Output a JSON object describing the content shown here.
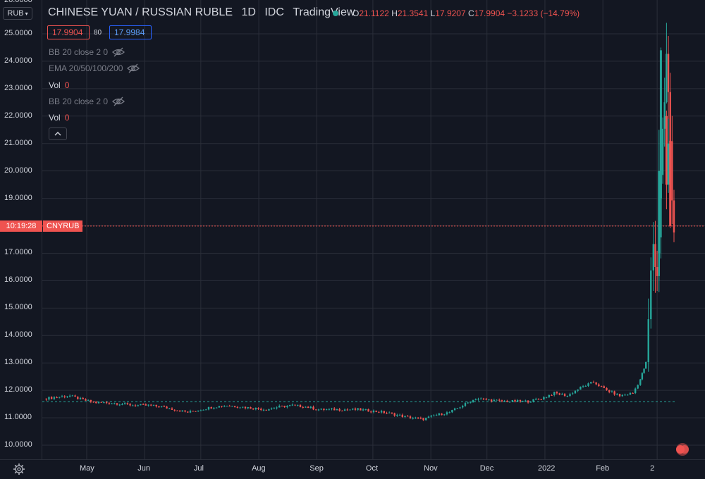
{
  "header": {
    "currency_select": "RUB",
    "title": "CHINESE YUAN / RUSSIAN RUBLE",
    "interval": "1D",
    "exchange": "IDC",
    "source": "TradingView",
    "ohlc": {
      "o_label": "O",
      "o_value": "21.1122",
      "h_label": "H",
      "h_value": "21.3541",
      "l_label": "L",
      "l_value": "17.9207",
      "c_label": "C",
      "c_value": "17.9904",
      "change": "−3.1233 (−14.79%)"
    },
    "sell_price": "17.9904",
    "spread": "80",
    "buy_price": "17.9984"
  },
  "indicators": [
    {
      "label": "BB 20 close 2 0",
      "icon": "eye-hidden-icon"
    },
    {
      "label": "EMA 20/50/100/200",
      "icon": "eye-hidden-icon"
    },
    {
      "label": "Vol",
      "value": "0"
    },
    {
      "label": "BB 20 close 2 0",
      "icon": "eye-hidden-icon"
    },
    {
      "label": "Vol",
      "value": "0"
    }
  ],
  "collapse_icon": "chevron-up-icon",
  "price_axis": {
    "top_partial": "26.0000",
    "labels": [
      "25.0000",
      "24.0000",
      "23.0000",
      "22.0000",
      "21.0000",
      "20.0000",
      "19.0000",
      "17.0000",
      "16.0000",
      "15.0000",
      "14.0000",
      "13.0000",
      "12.0000",
      "11.0000",
      "10.0000"
    ]
  },
  "time_axis": {
    "labels": [
      "May",
      "Jun",
      "Jul",
      "Aug",
      "Sep",
      "Oct",
      "Nov",
      "Dec",
      "2022",
      "Feb",
      "2"
    ]
  },
  "crosshair": {
    "time": "10:19:28",
    "symbol": "CNYRUB"
  },
  "colors": {
    "up": "#26a69a",
    "down": "#ef5350",
    "background": "#131722",
    "grid": "#2a2e39"
  },
  "chart_data": {
    "type": "candlestick",
    "y_range": [
      9.6,
      26.0
    ],
    "x_range": [
      "2021-04-08",
      "2022-03-11"
    ],
    "baseline": 11.58,
    "last": 17.9904,
    "series": [
      {
        "date": "2021-04-08",
        "close": 11.7
      },
      {
        "date": "2021-04-15",
        "close": 11.75
      },
      {
        "date": "2021-04-22",
        "close": 11.8
      },
      {
        "date": "2021-04-29",
        "close": 11.65
      },
      {
        "date": "2021-05-06",
        "close": 11.55
      },
      {
        "date": "2021-05-13",
        "close": 11.55
      },
      {
        "date": "2021-05-20",
        "close": 11.5
      },
      {
        "date": "2021-05-27",
        "close": 11.45
      },
      {
        "date": "2021-06-03",
        "close": 11.45
      },
      {
        "date": "2021-06-10",
        "close": 11.4
      },
      {
        "date": "2021-06-17",
        "close": 11.3
      },
      {
        "date": "2021-06-24",
        "close": 11.2
      },
      {
        "date": "2021-07-01",
        "close": 11.3
      },
      {
        "date": "2021-07-08",
        "close": 11.4
      },
      {
        "date": "2021-07-15",
        "close": 11.45
      },
      {
        "date": "2021-07-22",
        "close": 11.4
      },
      {
        "date": "2021-07-29",
        "close": 11.35
      },
      {
        "date": "2021-08-05",
        "close": 11.3
      },
      {
        "date": "2021-08-12",
        "close": 11.4
      },
      {
        "date": "2021-08-19",
        "close": 11.45
      },
      {
        "date": "2021-08-26",
        "close": 11.4
      },
      {
        "date": "2021-09-02",
        "close": 11.3
      },
      {
        "date": "2021-09-09",
        "close": 11.3
      },
      {
        "date": "2021-09-16",
        "close": 11.3
      },
      {
        "date": "2021-09-23",
        "close": 11.3
      },
      {
        "date": "2021-09-30",
        "close": 11.25
      },
      {
        "date": "2021-10-07",
        "close": 11.2
      },
      {
        "date": "2021-10-14",
        "close": 11.1
      },
      {
        "date": "2021-10-21",
        "close": 11.0
      },
      {
        "date": "2021-10-28",
        "close": 10.95
      },
      {
        "date": "2021-11-04",
        "close": 11.1
      },
      {
        "date": "2021-11-11",
        "close": 11.2
      },
      {
        "date": "2021-11-18",
        "close": 11.45
      },
      {
        "date": "2021-11-25",
        "close": 11.7
      },
      {
        "date": "2021-12-02",
        "close": 11.65
      },
      {
        "date": "2021-12-09",
        "close": 11.6
      },
      {
        "date": "2021-12-16",
        "close": 11.6
      },
      {
        "date": "2021-12-23",
        "close": 11.6
      },
      {
        "date": "2021-12-30",
        "close": 11.7
      },
      {
        "date": "2022-01-06",
        "close": 11.9
      },
      {
        "date": "2022-01-13",
        "close": 11.8
      },
      {
        "date": "2022-01-20",
        "close": 12.1
      },
      {
        "date": "2022-01-27",
        "close": 12.3
      },
      {
        "date": "2022-02-03",
        "close": 12.0
      },
      {
        "date": "2022-02-10",
        "close": 11.8
      },
      {
        "date": "2022-02-17",
        "close": 11.9
      },
      {
        "date": "2022-02-21",
        "close": 12.4
      },
      {
        "date": "2022-02-24",
        "close": 13.0
      },
      {
        "date": "2022-02-28",
        "close": 17.5
      },
      {
        "date": "2022-03-02",
        "close": 16.0
      },
      {
        "date": "2022-03-04",
        "close": 20.0
      },
      {
        "date": "2022-03-07",
        "close": 24.0
      },
      {
        "date": "2022-03-09",
        "close": 21.1
      },
      {
        "date": "2022-03-11",
        "close": 17.99
      }
    ]
  }
}
